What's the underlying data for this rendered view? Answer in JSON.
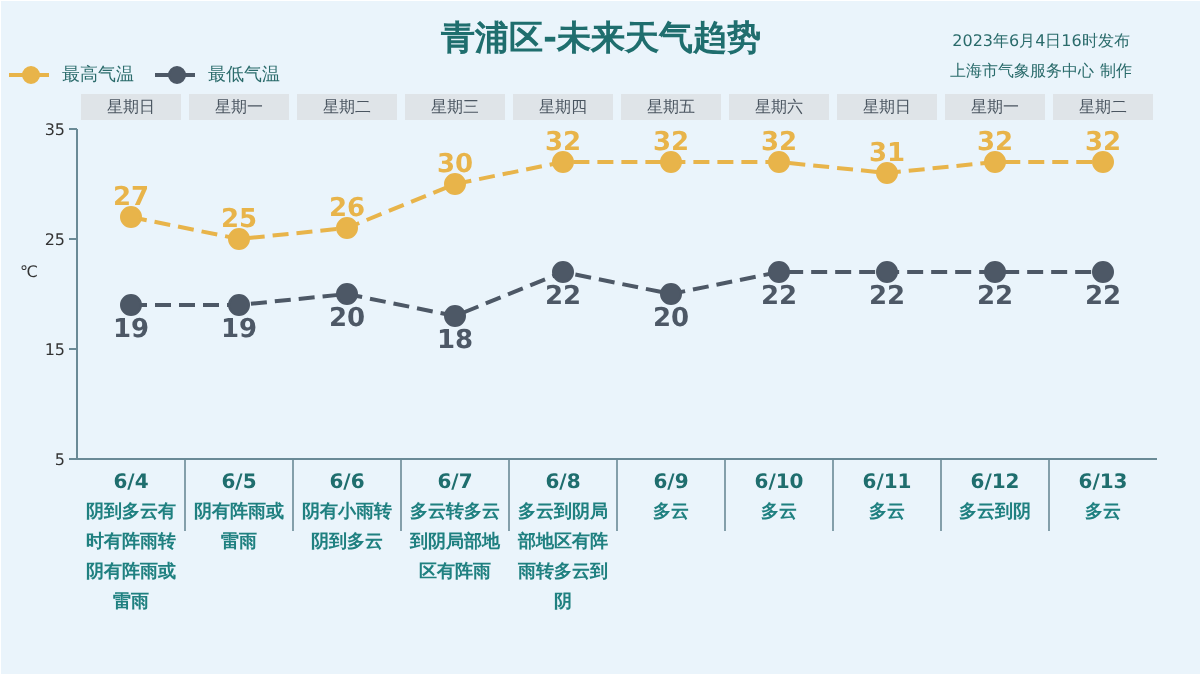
{
  "chart_data": {
    "type": "line",
    "title": "青浦区-未来天气趋势",
    "subtitle": "2023年6月4日16时发布",
    "categories": [
      "6/4\n阴到多云有时有阵雨转阴有阵雨或雷雨",
      "6/5\n阴有阵雨或雷雨",
      "6/6\n阴有小雨转阴到多云",
      "6/7\n多云转多云到阴局部地区有阵雨",
      "6/8\n多云到阴局部地区有阵雨转多云到阴",
      "6/9\n多云",
      "6/10\n多云",
      "6/11\n多云",
      "6/12\n多云到阴",
      "6/13\n多云"
    ],
    "series": [
      {
        "name": "最高气温",
        "color": "#e8b44a",
        "values": [
          27,
          25,
          26,
          30,
          32,
          32,
          32,
          31,
          32,
          32
        ]
      },
      {
        "name": "最低气温",
        "color": "#4d5866",
        "values": [
          19,
          19,
          20,
          18,
          22,
          20,
          22,
          22,
          22,
          22
        ]
      }
    ],
    "ylabel": "℃",
    "ylim": [
      5,
      35
    ],
    "yticks": [
      5,
      15,
      25,
      35
    ],
    "data_labels": true,
    "marker": "circle",
    "line_style": "dashed",
    "grid": false,
    "legend": "top left",
    "annotations": [
      "上海市气象服务中心 制作",
      "星期日",
      "星期一",
      "星期二",
      "星期三",
      "星期四",
      "星期五",
      "星期六",
      "星期日",
      "星期一",
      "星期二"
    ]
  }
}
